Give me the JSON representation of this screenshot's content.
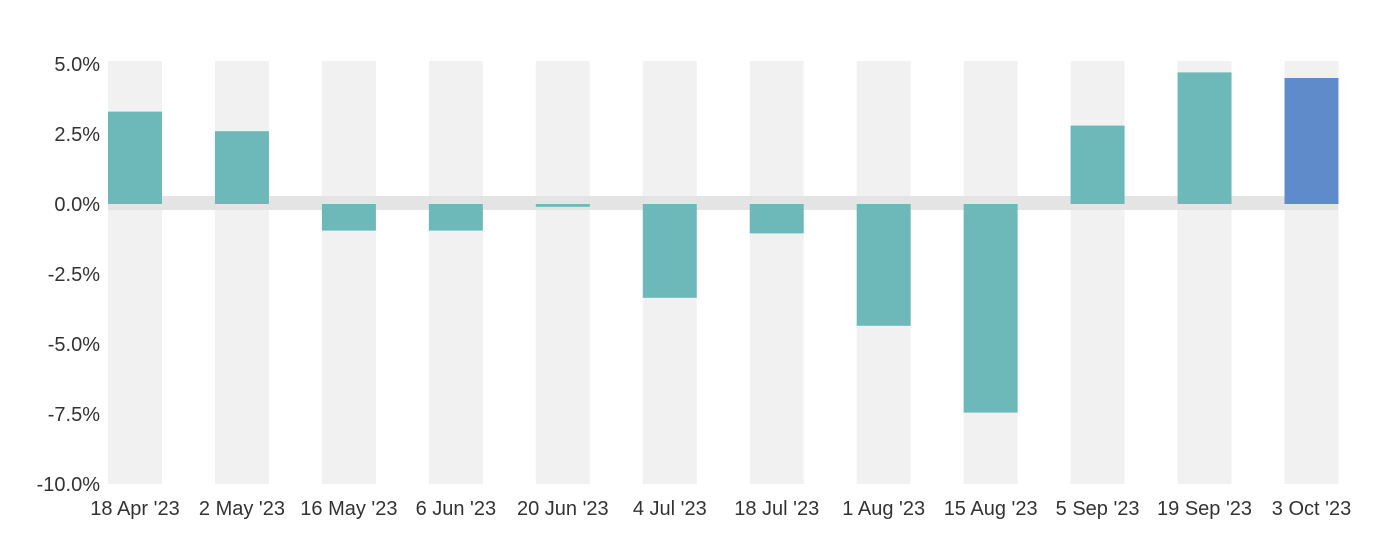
{
  "chart_data": {
    "type": "bar",
    "categories": [
      "18 Apr '23",
      "2 May '23",
      "16 May '23",
      "6 Jun '23",
      "20 Jun '23",
      "4 Jul '23",
      "18 Jul '23",
      "1 Aug '23",
      "15 Aug '23",
      "5 Sep '23",
      "19 Sep '23",
      "3 Oct '23"
    ],
    "values": [
      3.3,
      2.6,
      -0.95,
      -0.95,
      -0.1,
      -3.35,
      -1.05,
      -4.35,
      -7.45,
      2.8,
      4.7,
      4.5
    ],
    "highlight_index": 11,
    "yticks": [
      5.0,
      2.5,
      0.0,
      -2.5,
      -5.0,
      -7.5,
      -10.0
    ],
    "ytick_labels": [
      "5.0%",
      "2.5%",
      "0.0%",
      "-2.5%",
      "-5.0%",
      "-7.5%",
      "-10.0%"
    ],
    "ylim": [
      -10,
      5
    ],
    "xlabel": "",
    "ylabel": "",
    "title": "",
    "grid": true,
    "colors": {
      "bar": "#6db8b9",
      "highlight": "#5f8bcb",
      "band": "#f1f1f1",
      "zero_band": "#e4e4e4",
      "tick_text": "#333333"
    }
  }
}
